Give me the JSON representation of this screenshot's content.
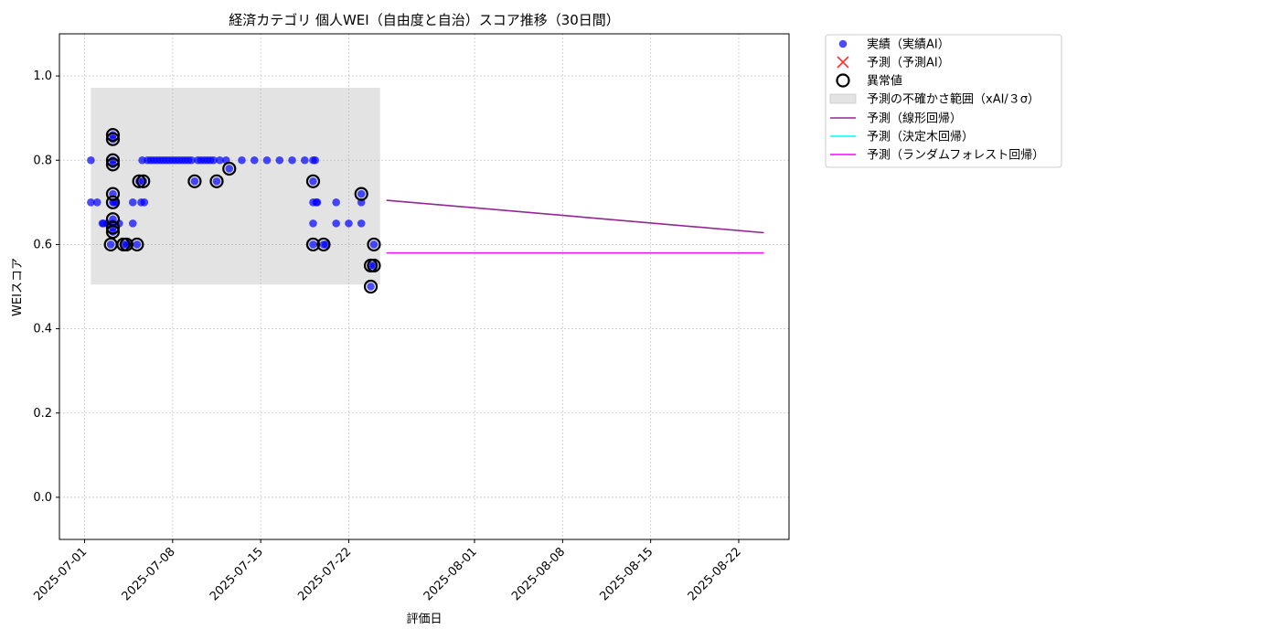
{
  "chart_data": {
    "type": "scatter",
    "title": "経済カテゴリ 個人WEI（自由度と自治）スコア推移（30日間）",
    "xlabel": "評価日",
    "ylabel": "WEIスコア",
    "ylim": [
      -0.1,
      1.1
    ],
    "xlim": [
      "2025-06-29",
      "2025-08-26"
    ],
    "yticks": [
      0.0,
      0.2,
      0.4,
      0.6,
      0.8,
      1.0
    ],
    "xticks": [
      "2025-07-01",
      "2025-07-08",
      "2025-07-15",
      "2025-07-22",
      "2025-08-01",
      "2025-08-08",
      "2025-08-15",
      "2025-08-22"
    ],
    "grid": true,
    "legend_position": "outside-top-right",
    "colors": {
      "actual": "#0000ff",
      "predicted": "#ff0000",
      "anomaly": "#000000",
      "uncertainty": "#b0b0b0",
      "linear": "#800080",
      "tree": "#00ffff",
      "forest": "#ff00ff"
    },
    "series": [
      {
        "name": "実績（実績AI）",
        "kind": "scatter",
        "points": [
          [
            "2025-07-01T12:00",
            0.8
          ],
          [
            "2025-07-01T12:00",
            0.7
          ],
          [
            "2025-07-02T00:00",
            0.7
          ],
          [
            "2025-07-02T10:00",
            0.65
          ],
          [
            "2025-07-02T12:00",
            0.65
          ],
          [
            "2025-07-02T20:00",
            0.65
          ],
          [
            "2025-07-03T02:00",
            0.6
          ],
          [
            "2025-07-03T06:00",
            0.65
          ],
          [
            "2025-07-03T06:00",
            0.86
          ],
          [
            "2025-07-03T06:00",
            0.85
          ],
          [
            "2025-07-03T06:00",
            0.8
          ],
          [
            "2025-07-03T06:00",
            0.79
          ],
          [
            "2025-07-03T06:00",
            0.72
          ],
          [
            "2025-07-03T06:00",
            0.7
          ],
          [
            "2025-07-03T06:00",
            0.66
          ],
          [
            "2025-07-03T06:00",
            0.64
          ],
          [
            "2025-07-03T06:00",
            0.63
          ],
          [
            "2025-07-03T08:00",
            0.7
          ],
          [
            "2025-07-03T12:00",
            0.7
          ],
          [
            "2025-07-03T18:00",
            0.65
          ],
          [
            "2025-07-04T02:00",
            0.6
          ],
          [
            "2025-07-04T08:00",
            0.6
          ],
          [
            "2025-07-04T14:00",
            0.6
          ],
          [
            "2025-07-04T20:00",
            0.7
          ],
          [
            "2025-07-04T20:00",
            0.65
          ],
          [
            "2025-07-05T04:00",
            0.6
          ],
          [
            "2025-07-05T08:00",
            0.75
          ],
          [
            "2025-07-05T12:00",
            0.7
          ],
          [
            "2025-07-05T14:00",
            0.8
          ],
          [
            "2025-07-05T16:00",
            0.75
          ],
          [
            "2025-07-05T18:00",
            0.7
          ],
          [
            "2025-07-06T00:00",
            0.8
          ],
          [
            "2025-07-06T06:00",
            0.8
          ],
          [
            "2025-07-06T12:00",
            0.8
          ],
          [
            "2025-07-06T18:00",
            0.8
          ],
          [
            "2025-07-07T00:00",
            0.8
          ],
          [
            "2025-07-07T06:00",
            0.8
          ],
          [
            "2025-07-07T12:00",
            0.8
          ],
          [
            "2025-07-07T18:00",
            0.8
          ],
          [
            "2025-07-08T00:00",
            0.8
          ],
          [
            "2025-07-08T06:00",
            0.8
          ],
          [
            "2025-07-08T12:00",
            0.8
          ],
          [
            "2025-07-08T18:00",
            0.8
          ],
          [
            "2025-07-09T00:00",
            0.8
          ],
          [
            "2025-07-09T06:00",
            0.8
          ],
          [
            "2025-07-09T12:00",
            0.8
          ],
          [
            "2025-07-09T18:00",
            0.75
          ],
          [
            "2025-07-10T00:00",
            0.8
          ],
          [
            "2025-07-10T06:00",
            0.8
          ],
          [
            "2025-07-10T12:00",
            0.8
          ],
          [
            "2025-07-10T18:00",
            0.8
          ],
          [
            "2025-07-11T00:00",
            0.8
          ],
          [
            "2025-07-11T06:00",
            0.8
          ],
          [
            "2025-07-11T12:00",
            0.75
          ],
          [
            "2025-07-11T18:00",
            0.8
          ],
          [
            "2025-07-12T06:00",
            0.8
          ],
          [
            "2025-07-12T12:00",
            0.78
          ],
          [
            "2025-07-13T12:00",
            0.8
          ],
          [
            "2025-07-14T12:00",
            0.8
          ],
          [
            "2025-07-15T12:00",
            0.8
          ],
          [
            "2025-07-16T12:00",
            0.8
          ],
          [
            "2025-07-17T12:00",
            0.8
          ],
          [
            "2025-07-18T12:00",
            0.8
          ],
          [
            "2025-07-19T04:00",
            0.8
          ],
          [
            "2025-07-19T04:00",
            0.75
          ],
          [
            "2025-07-19T04:00",
            0.7
          ],
          [
            "2025-07-19T04:00",
            0.65
          ],
          [
            "2025-07-19T04:00",
            0.6
          ],
          [
            "2025-07-19T08:00",
            0.8
          ],
          [
            "2025-07-19T10:00",
            0.7
          ],
          [
            "2025-07-19T12:00",
            0.7
          ],
          [
            "2025-07-20T00:00",
            0.6
          ],
          [
            "2025-07-20T04:00",
            0.6
          ],
          [
            "2025-07-21T00:00",
            0.7
          ],
          [
            "2025-07-21T00:00",
            0.65
          ],
          [
            "2025-07-22T00:00",
            0.65
          ],
          [
            "2025-07-23T00:00",
            0.72
          ],
          [
            "2025-07-23T00:00",
            0.7
          ],
          [
            "2025-07-23T00:00",
            0.65
          ],
          [
            "2025-07-23T18:00",
            0.55
          ],
          [
            "2025-07-23T18:00",
            0.5
          ],
          [
            "2025-07-24T00:00",
            0.6
          ],
          [
            "2025-07-24T00:00",
            0.55
          ]
        ]
      },
      {
        "name": "予測（予測AI）",
        "kind": "scatter",
        "points": []
      },
      {
        "name": "異常値",
        "kind": "scatter",
        "points": [
          [
            "2025-07-03T02:00",
            0.6
          ],
          [
            "2025-07-03T06:00",
            0.86
          ],
          [
            "2025-07-03T06:00",
            0.85
          ],
          [
            "2025-07-03T06:00",
            0.8
          ],
          [
            "2025-07-03T06:00",
            0.79
          ],
          [
            "2025-07-03T06:00",
            0.72
          ],
          [
            "2025-07-03T06:00",
            0.7
          ],
          [
            "2025-07-03T06:00",
            0.66
          ],
          [
            "2025-07-03T06:00",
            0.64
          ],
          [
            "2025-07-03T06:00",
            0.63
          ],
          [
            "2025-07-04T02:00",
            0.6
          ],
          [
            "2025-07-04T08:00",
            0.6
          ],
          [
            "2025-07-05T04:00",
            0.6
          ],
          [
            "2025-07-05T08:00",
            0.75
          ],
          [
            "2025-07-05T16:00",
            0.75
          ],
          [
            "2025-07-09T18:00",
            0.75
          ],
          [
            "2025-07-11T12:00",
            0.75
          ],
          [
            "2025-07-12T12:00",
            0.78
          ],
          [
            "2025-07-19T04:00",
            0.75
          ],
          [
            "2025-07-19T04:00",
            0.6
          ],
          [
            "2025-07-20T00:00",
            0.6
          ],
          [
            "2025-07-23T00:00",
            0.72
          ],
          [
            "2025-07-23T18:00",
            0.55
          ],
          [
            "2025-07-23T18:00",
            0.5
          ],
          [
            "2025-07-24T00:00",
            0.6
          ],
          [
            "2025-07-24T00:00",
            0.55
          ]
        ]
      },
      {
        "name": "予測の不確かさ範囲（xAI/３σ）",
        "kind": "band",
        "x": [
          "2025-07-01T12:00",
          "2025-07-24T12:00"
        ],
        "y": [
          0.505,
          0.972
        ]
      },
      {
        "name": "予測（線形回帰）",
        "kind": "line",
        "points": [
          [
            "2025-07-25T00:00",
            0.705
          ],
          [
            "2025-08-24T00:00",
            0.628
          ]
        ]
      },
      {
        "name": "予測（決定木回帰）",
        "kind": "line",
        "points": [
          [
            "2025-07-25T00:00",
            0.58
          ],
          [
            "2025-08-24T00:00",
            0.58
          ]
        ]
      },
      {
        "name": "予測（ランダムフォレスト回帰）",
        "kind": "line",
        "points": [
          [
            "2025-07-25T00:00",
            0.58
          ],
          [
            "2025-08-24T00:00",
            0.58
          ]
        ]
      }
    ]
  }
}
